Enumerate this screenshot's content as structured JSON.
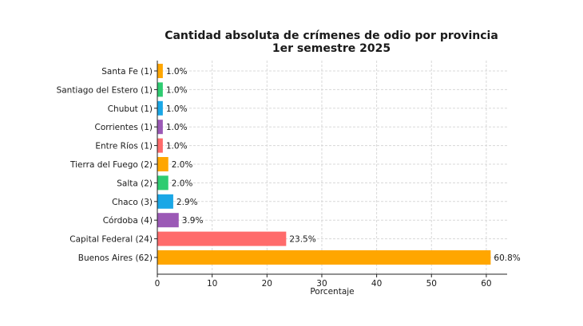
{
  "chart_data": {
    "type": "bar",
    "orientation": "horizontal",
    "title": "Cantidad absoluta de crímenes de odio por provincia",
    "subtitle": "1er semestre 2025",
    "xlabel": "Porcentaje",
    "ylabel": "",
    "xlim": [
      0,
      63.8
    ],
    "xticks": [
      0,
      10,
      20,
      30,
      40,
      50,
      60
    ],
    "grid": true,
    "categories": [
      "Santa Fe (1)",
      "Santiago del Estero (1)",
      "Chubut (1)",
      "Corrientes (1)",
      "Entre Ríos (1)",
      "Tierra del Fuego (2)",
      "Salta (2)",
      "Chaco (3)",
      "Córdoba (4)",
      "Capital Federal (24)",
      "Buenos Aires (62)"
    ],
    "values": [
      1.0,
      1.0,
      1.0,
      1.0,
      1.0,
      2.0,
      2.0,
      2.9,
      3.9,
      23.5,
      60.8
    ],
    "value_labels": [
      "1.0%",
      "1.0%",
      "1.0%",
      "1.0%",
      "1.0%",
      "2.0%",
      "2.0%",
      "2.9%",
      "3.9%",
      "23.5%",
      "60.8%"
    ],
    "colors": [
      "#ffa600",
      "#2ecc71",
      "#1aa7e6",
      "#9b59b6",
      "#ff6b6b",
      "#ffa600",
      "#2ecc71",
      "#1aa7e6",
      "#9b59b6",
      "#ff6b6b",
      "#ffa600"
    ]
  }
}
